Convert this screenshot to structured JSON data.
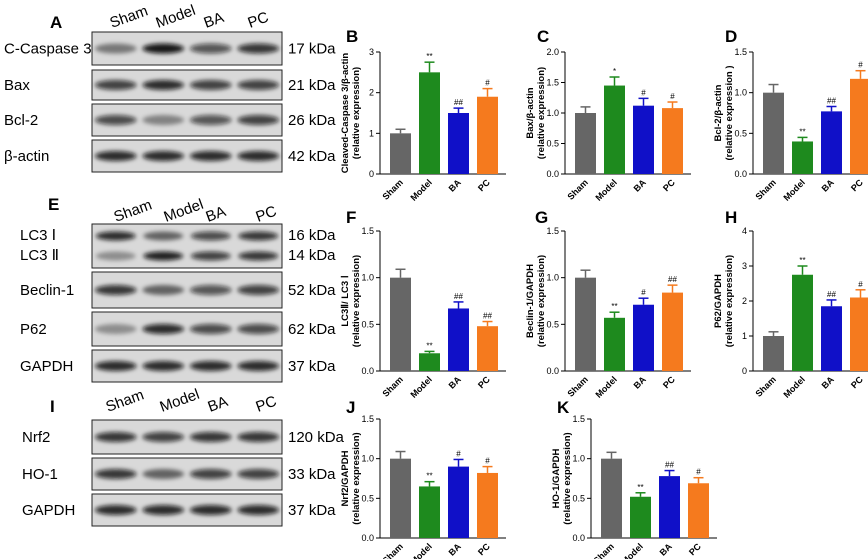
{
  "colors": {
    "Sham": "#666666",
    "Model": "#1e8a1e",
    "BA": "#1010c8",
    "PC": "#f57a1e"
  },
  "blots": [
    {
      "letter": "A",
      "lanes": [
        "Sham",
        "Model",
        "BA",
        "PC"
      ],
      "rows": [
        {
          "label": "C-Caspase 3",
          "kda": "17 kDa"
        },
        {
          "label": "Bax",
          "kda": "21 kDa"
        },
        {
          "label": "Bcl-2",
          "kda": "26 kDa"
        },
        {
          "label": "β-actin",
          "kda": "42 kDa"
        }
      ]
    },
    {
      "letter": "E",
      "lanes": [
        "Sham",
        "Model",
        "BA",
        "PC"
      ],
      "rows": [
        {
          "label": "LC3 Ⅰ",
          "label2": "LC3 Ⅱ",
          "kda": "16 kDa",
          "kda2": "14 kDa"
        },
        {
          "label": "Beclin-1",
          "kda": "52 kDa"
        },
        {
          "label": "P62",
          "kda": "62 kDa"
        },
        {
          "label": "GAPDH",
          "kda": "37 kDa"
        }
      ]
    },
    {
      "letter": "I",
      "lanes": [
        "Sham",
        "Model",
        "BA",
        "PC"
      ],
      "rows": [
        {
          "label": "Nrf2",
          "kda": "120 kDa"
        },
        {
          "label": "HO-1",
          "kda": "33 kDa"
        },
        {
          "label": "GAPDH",
          "kda": "37 kDa"
        }
      ]
    }
  ],
  "chart_data": [
    {
      "letter": "B",
      "type": "bar",
      "categories": [
        "Sham",
        "Model",
        "BA",
        "PC"
      ],
      "values": [
        1.0,
        2.5,
        1.5,
        1.9
      ],
      "errors": [
        0.1,
        0.25,
        0.12,
        0.2
      ],
      "sig": [
        "",
        "**",
        "##",
        "#"
      ],
      "ylim": [
        0,
        3
      ],
      "yticks": [
        "0",
        "1",
        "2",
        "3"
      ],
      "ylabel": [
        "Cleaved-Caspase 3/β-actin",
        "(relative expression)"
      ]
    },
    {
      "letter": "C",
      "type": "bar",
      "categories": [
        "Sham",
        "Model",
        "BA",
        "PC"
      ],
      "values": [
        1.0,
        1.45,
        1.12,
        1.08
      ],
      "errors": [
        0.1,
        0.14,
        0.12,
        0.1
      ],
      "sig": [
        "",
        "*",
        "#",
        "#"
      ],
      "ylim": [
        0,
        2.0
      ],
      "yticks": [
        "0.0",
        "0.5",
        "1.0",
        "1.5",
        "2.0"
      ],
      "ylabel": [
        "Bax/β-actin",
        "(relative expression)"
      ]
    },
    {
      "letter": "D",
      "type": "bar",
      "categories": [
        "Sham",
        "Model",
        "BA",
        "PC"
      ],
      "values": [
        1.0,
        0.4,
        0.77,
        1.17
      ],
      "errors": [
        0.1,
        0.05,
        0.06,
        0.1
      ],
      "sig": [
        "",
        "**",
        "##",
        "#"
      ],
      "ylim": [
        0,
        1.5
      ],
      "yticks": [
        "0.0",
        "0.5",
        "1.0",
        "1.5"
      ],
      "ylabel": [
        "Bcl-2/β-actin",
        "(relative expression )"
      ]
    },
    {
      "letter": "F",
      "type": "bar",
      "categories": [
        "Sham",
        "Model",
        "BA",
        "PC"
      ],
      "values": [
        1.0,
        0.19,
        0.67,
        0.48
      ],
      "errors": [
        0.09,
        0.02,
        0.07,
        0.05
      ],
      "sig": [
        "",
        "**",
        "##",
        "##"
      ],
      "ylim": [
        0,
        1.5
      ],
      "yticks": [
        "0.0",
        "0.5",
        "1.0",
        "1.5"
      ],
      "ylabel": [
        "LC3Ⅱ/ LC3 Ⅰ",
        "(relative expression)"
      ]
    },
    {
      "letter": "G",
      "type": "bar",
      "categories": [
        "Sham",
        "Model",
        "BA",
        "PC"
      ],
      "values": [
        1.0,
        0.57,
        0.71,
        0.84
      ],
      "errors": [
        0.08,
        0.06,
        0.07,
        0.08
      ],
      "sig": [
        "",
        "**",
        "#",
        "##"
      ],
      "ylim": [
        0,
        1.5
      ],
      "yticks": [
        "0.0",
        "0.5",
        "1.0",
        "1.5"
      ],
      "ylabel": [
        "Beclin-1/GAPDH",
        "(relative expression)"
      ]
    },
    {
      "letter": "H",
      "type": "bar",
      "categories": [
        "Sham",
        "Model",
        "BA",
        "PC"
      ],
      "values": [
        1.0,
        2.75,
        1.85,
        2.1
      ],
      "errors": [
        0.12,
        0.25,
        0.18,
        0.22
      ],
      "sig": [
        "",
        "**",
        "##",
        "#"
      ],
      "ylim": [
        0,
        4
      ],
      "yticks": [
        "0",
        "1",
        "2",
        "3",
        "4"
      ],
      "ylabel": [
        "P62/GAPDH",
        "(relative expression)"
      ]
    },
    {
      "letter": "J",
      "type": "bar",
      "categories": [
        "Sham",
        "Model",
        "BA",
        "PC"
      ],
      "values": [
        1.0,
        0.65,
        0.9,
        0.82
      ],
      "errors": [
        0.09,
        0.06,
        0.09,
        0.08
      ],
      "sig": [
        "",
        "**",
        "#",
        "#"
      ],
      "ylim": [
        0,
        1.5
      ],
      "yticks": [
        "0.0",
        "0.5",
        "1.0",
        "1.5"
      ],
      "ylabel": [
        "Nrf2/GAPDH",
        "(relative expression)"
      ]
    },
    {
      "letter": "K",
      "type": "bar",
      "categories": [
        "Sham",
        "Model",
        "BA",
        "PC"
      ],
      "values": [
        1.0,
        0.52,
        0.78,
        0.69
      ],
      "errors": [
        0.08,
        0.05,
        0.07,
        0.07
      ],
      "sig": [
        "",
        "**",
        "##",
        "#"
      ],
      "ylim": [
        0,
        1.5
      ],
      "yticks": [
        "0.0",
        "0.5",
        "1.0",
        "1.5"
      ],
      "ylabel": [
        "HO-1/GAPDH",
        "(relative expression)"
      ]
    }
  ]
}
